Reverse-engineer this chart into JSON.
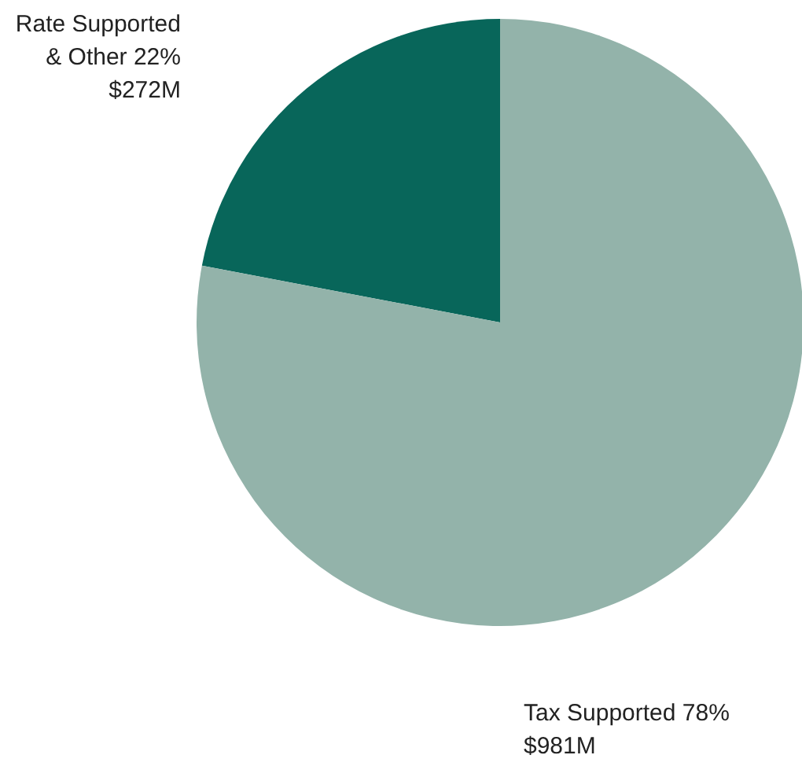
{
  "chart_data": {
    "type": "pie",
    "categories": [
      "Rate Supported & Other",
      "Tax Supported"
    ],
    "values": [
      22,
      78
    ],
    "value_labels": [
      "22% $272M",
      "78% $981M"
    ],
    "colors": [
      "#08665a",
      "#93b3aa"
    ],
    "legend": false
  }
}
